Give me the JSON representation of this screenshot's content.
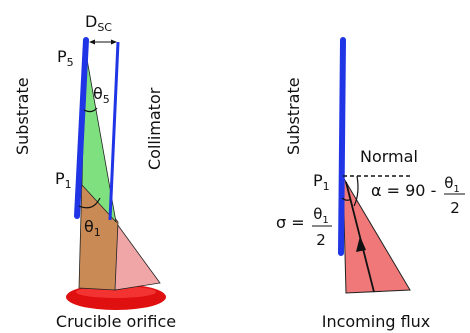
{
  "left_panel": {
    "d_label": "D",
    "d_sub": "SC",
    "p5_label": "P",
    "p5_sub": "5",
    "theta5_label": "θ",
    "theta5_sub": "5",
    "p1_label": "P",
    "p1_sub": "1",
    "theta1_label": "θ",
    "theta1_sub": "1",
    "substrate_label": "Substrate",
    "collimator_label": "Collimator",
    "caption": "Crucible orifice"
  },
  "right_panel": {
    "substrate_label": "Substrate",
    "normal_label": "Normal",
    "p1_label": "P",
    "p1_sub": "1",
    "alpha_expr": "α = 90 -",
    "alpha_num": "θ",
    "alpha_num_sub": "1",
    "alpha_den": "2",
    "sigma_expr": "σ =",
    "sigma_num": "θ",
    "sigma_num_sub": "1",
    "sigma_den": "2",
    "caption": "Incoming flux"
  },
  "colors": {
    "substrate_blue": "#1f35e6",
    "green_fill": "#7fe07f",
    "brown_fill": "#c98a55",
    "light_red_fill": "#f0a6a6",
    "red_fill": "#f07878",
    "crucible_red": "#e01010"
  }
}
